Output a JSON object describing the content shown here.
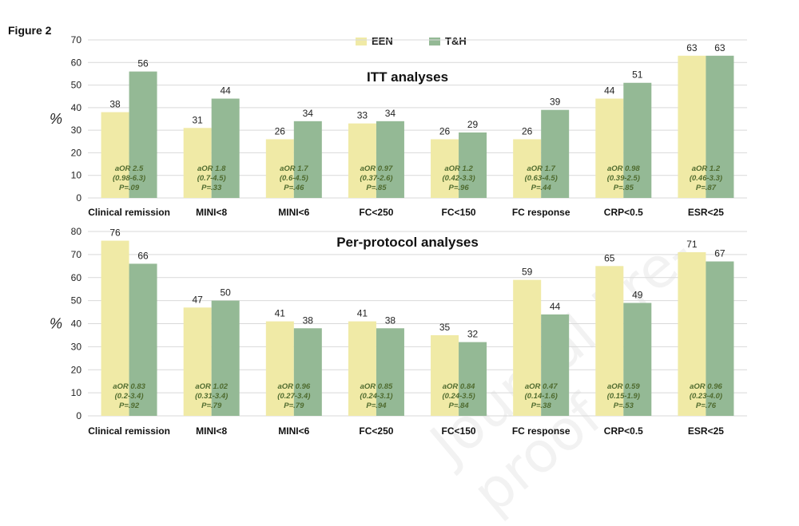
{
  "figure_label": "Figure 2",
  "watermark": "Journal Pre-proof",
  "legend": [
    {
      "name": "EEN",
      "color": "#f0eaa6"
    },
    {
      "name": "T&H",
      "color": "#94b995"
    }
  ],
  "chart_data": [
    {
      "type": "bar",
      "title": "ITT analyses",
      "ylabel": "%",
      "ylim": [
        0,
        70
      ],
      "yticks": [
        0,
        10,
        20,
        30,
        40,
        50,
        60,
        70
      ],
      "grid": true,
      "legend_position": "top-center",
      "categories": [
        "Clinical remission",
        "MINI<8",
        "MINI<6",
        "FC<250",
        "FC<150",
        "FC response",
        "CRP<0.5",
        "ESR<25"
      ],
      "series": [
        {
          "name": "EEN",
          "values": [
            38,
            31,
            26,
            33,
            26,
            26,
            44,
            63
          ]
        },
        {
          "name": "T&H",
          "values": [
            56,
            44,
            34,
            34,
            29,
            39,
            51,
            63
          ]
        }
      ],
      "annotations": [
        [
          "aOR 2.5",
          "(0.98-6.3)",
          "P=.09"
        ],
        [
          "aOR 1.8",
          "(0.7-4.5)",
          "P=.33"
        ],
        [
          "aOR 1.7",
          "(0.6-4.5)",
          "P=.46"
        ],
        [
          "aOR 0.97",
          "(0.37-2.6)",
          "P=.85"
        ],
        [
          "aOR 1.2",
          "(0.42-3.3)",
          "P=.96"
        ],
        [
          "aOR 1.7",
          "(0.63-4.5)",
          "P=.44"
        ],
        [
          "aOR 0.98",
          "(0.39-2.5)",
          "P=.85"
        ],
        [
          "aOR 1.2",
          "(0.46-3.3)",
          "P=.87"
        ]
      ]
    },
    {
      "type": "bar",
      "title": "Per-protocol analyses",
      "ylabel": "%",
      "ylim": [
        0,
        80
      ],
      "yticks": [
        0,
        10,
        20,
        30,
        40,
        50,
        60,
        70,
        80
      ],
      "grid": true,
      "categories": [
        "Clinical remission",
        "MINI<8",
        "MINI<6",
        "FC<250",
        "FC<150",
        "FC response",
        "CRP<0.5",
        "ESR<25"
      ],
      "series": [
        {
          "name": "EEN",
          "values": [
            76,
            47,
            41,
            41,
            35,
            59,
            65,
            71
          ]
        },
        {
          "name": "T&H",
          "values": [
            66,
            50,
            38,
            38,
            32,
            44,
            49,
            67
          ]
        }
      ],
      "annotations": [
        [
          "aOR 0.83",
          "(0.2-3.4)",
          "P=.92"
        ],
        [
          "aOR 1.02",
          "(0.31-3.4)",
          "P=.79"
        ],
        [
          "aOR 0.96",
          "(0.27-3.4)",
          "P=.79"
        ],
        [
          "aOR 0.85",
          "(0.24-3.1)",
          "P=.94"
        ],
        [
          "aOR 0.84",
          "(0.24-3.5)",
          "P=.84"
        ],
        [
          "aOR 0.47",
          "(0.14-1.6)",
          "P=.38"
        ],
        [
          "aOR 0.59",
          "(0.15-1.9)",
          "P=.53"
        ],
        [
          "aOR 0.96",
          "(0.23-4.0)",
          "P=.76"
        ]
      ]
    }
  ]
}
